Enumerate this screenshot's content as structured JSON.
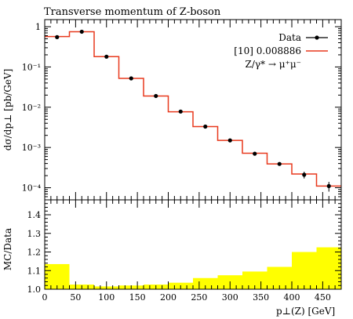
{
  "chart_data": {
    "title": "Transverse momentum of Z-boson",
    "top_panel": {
      "type": "line",
      "ylabel": "dσ/dp⊥ [pb/GeV]",
      "yscale": "log",
      "ylim": [
        5e-05,
        1.5
      ],
      "y_ticks": [
        {
          "value": 1,
          "label": "1"
        },
        {
          "value": 0.1,
          "label": "10⁻¹"
        },
        {
          "value": 0.01,
          "label": "10⁻²"
        },
        {
          "value": 0.001,
          "label": "10⁻³"
        },
        {
          "value": 0.0001,
          "label": "10⁻⁴"
        }
      ],
      "legend": {
        "entries": [
          {
            "label": "Data",
            "style": "marker"
          },
          {
            "label": "[10] 0.008886",
            "style": "line",
            "color": "#e8391d"
          },
          {
            "label": "Z/γ* → μ⁺μ⁻",
            "style": "text"
          }
        ],
        "position": "top-right"
      },
      "data": {
        "name": "Data",
        "x": [
          20,
          60,
          100,
          140,
          180,
          220,
          260,
          300,
          340,
          380,
          420,
          460
        ],
        "y": [
          0.55,
          0.75,
          0.18,
          0.052,
          0.019,
          0.0078,
          0.0033,
          0.0015,
          0.0007,
          0.00039,
          0.00021,
          0.00011
        ],
        "yerr": [
          0,
          0,
          0,
          0,
          0,
          0,
          0,
          0,
          0,
          0,
          4e-05,
          3e-05
        ]
      },
      "mc": {
        "name": "[10] 0.008886",
        "color": "#e8391d",
        "bin_edges": [
          0,
          40,
          80,
          120,
          160,
          200,
          240,
          280,
          320,
          360,
          400,
          440,
          480
        ],
        "values": [
          0.57,
          0.75,
          0.18,
          0.052,
          0.019,
          0.0077,
          0.0033,
          0.0015,
          0.00072,
          0.00039,
          0.00022,
          0.00011
        ]
      }
    },
    "ratio_panel": {
      "type": "area",
      "ylabel": "MC/Data",
      "ylim": [
        1.0,
        1.48
      ],
      "y_ticks": [
        1.0,
        1.1,
        1.2,
        1.3,
        1.4
      ],
      "color": "#ffff00",
      "bin_edges": [
        0,
        40,
        80,
        120,
        160,
        200,
        240,
        280,
        320,
        360,
        400,
        440,
        480
      ],
      "band_upper": [
        1.135,
        1.025,
        1.015,
        1.02,
        1.025,
        1.035,
        1.06,
        1.075,
        1.095,
        1.12,
        1.2,
        1.225
      ],
      "band_lower": [
        1.0,
        1.0,
        1.0,
        1.0,
        1.0,
        1.0,
        1.0,
        1.0,
        1.0,
        1.0,
        1.0,
        1.0
      ]
    },
    "x_axis": {
      "xlabel": "p⊥(Z) [GeV]",
      "xlim": [
        0,
        480
      ],
      "ticks": [
        0,
        50,
        100,
        150,
        200,
        250,
        300,
        350,
        400,
        450
      ]
    }
  }
}
